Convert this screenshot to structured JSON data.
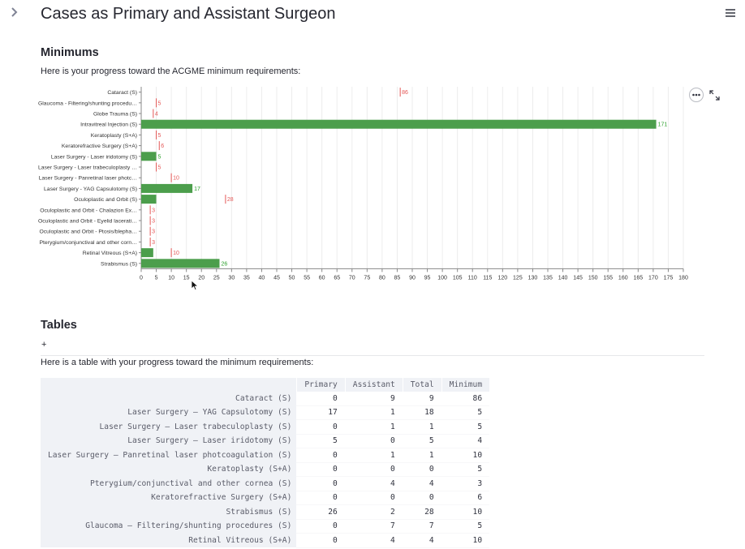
{
  "page": {
    "title": "Cases as Primary and Assistant Surgeon"
  },
  "icons": {
    "sidebar_toggle": "chevron-right-icon",
    "menu": "hamburger-menu-icon",
    "chart_menu": "more-horizontal-icon",
    "chart_fullscreen": "expand-icon"
  },
  "minimums": {
    "heading": "Minimums",
    "intro": "Here is your progress toward the ACGME minimum requirements:"
  },
  "colors": {
    "bar": "#4c9e4c",
    "min_marker": "#e45756",
    "bar_label": "#2ca02c"
  },
  "chart_data": {
    "type": "bar",
    "orientation": "horizontal",
    "categories": [
      "Cataract (S)",
      "Glaucoma - Filtering/shunting procedu…",
      "Globe Trauma (S)",
      "Intravitreal Injection (S)",
      "Keratoplasty (S+A)",
      "Keratorefractive Surgery (S+A)",
      "Laser Surgery - Laser iridotomy (S)",
      "Laser Surgery - Laser trabeculoplasty …",
      "Laser Surgery - Panretinal laser photc…",
      "Laser Surgery - YAG Capsulotomy (S)",
      "Oculoplastic and Orbit (S)",
      "Oculoplastic and Orbit - Chalazion Ex…",
      "Oculoplastic and Orbit - Eyelid lacerati…",
      "Oculoplastic and Orbit - Ptosis/blepha…",
      "Pterygium/conjunctival and other corn…",
      "Retinal Vitreous (S+A)",
      "Strabismus (S)"
    ],
    "series": [
      {
        "values": [
          0,
          0,
          0,
          171,
          0,
          0,
          5,
          0,
          0,
          17,
          5,
          0,
          0,
          0,
          0,
          4,
          26
        ]
      },
      {
        "values": [
          86,
          5,
          4,
          null,
          5,
          6,
          null,
          5,
          10,
          null,
          28,
          3,
          3,
          3,
          3,
          10,
          null
        ]
      }
    ],
    "bar_labels": [
      "",
      "",
      "",
      "171",
      "",
      "",
      "5",
      "",
      "",
      "17",
      "",
      "",
      "",
      "",
      "",
      "",
      "26"
    ],
    "min_labels": [
      "86",
      "5",
      "4",
      "",
      "5",
      "6",
      "",
      "5",
      "10",
      "",
      "28",
      "3",
      "3",
      "3",
      "3",
      "10",
      ""
    ],
    "xlim": [
      0,
      180
    ],
    "x_ticks": [
      "0",
      "5",
      "10",
      "15",
      "20",
      "25",
      "30",
      "35",
      "40",
      "45",
      "50",
      "55",
      "60",
      "65",
      "70",
      "75",
      "80",
      "85",
      "90",
      "95",
      "100",
      "105",
      "110",
      "115",
      "120",
      "125",
      "130",
      "135",
      "140",
      "145",
      "150",
      "155",
      "160",
      "165",
      "170",
      "175",
      "180"
    ],
    "grid": true
  },
  "tables": {
    "heading": "Tables",
    "expander_label": "+",
    "intro": "Here is a table with your progress toward the minimum requirements:",
    "columns": [
      "Primary",
      "Assistant",
      "Total",
      "Minimum"
    ],
    "rows": [
      {
        "label": "Cataract (S)",
        "cells": [
          "0",
          "9",
          "9",
          "86"
        ]
      },
      {
        "label": "Laser Surgery – YAG Capsulotomy (S)",
        "cells": [
          "17",
          "1",
          "18",
          "5"
        ]
      },
      {
        "label": "Laser Surgery – Laser trabeculoplasty (S)",
        "cells": [
          "0",
          "1",
          "1",
          "5"
        ]
      },
      {
        "label": "Laser Surgery – Laser iridotomy (S)",
        "cells": [
          "5",
          "0",
          "5",
          "4"
        ]
      },
      {
        "label": "Laser Surgery – Panretinal laser photcoagulation (S)",
        "cells": [
          "0",
          "1",
          "1",
          "10"
        ]
      },
      {
        "label": "Keratoplasty (S+A)",
        "cells": [
          "0",
          "0",
          "0",
          "5"
        ]
      },
      {
        "label": "Pterygium/conjunctival and other cornea (S)",
        "cells": [
          "0",
          "4",
          "4",
          "3"
        ]
      },
      {
        "label": "Keratorefractive Surgery (S+A)",
        "cells": [
          "0",
          "0",
          "0",
          "6"
        ]
      },
      {
        "label": "Strabismus (S)",
        "cells": [
          "26",
          "2",
          "28",
          "10"
        ]
      },
      {
        "label": "Glaucoma – Filtering/shunting procedures (S)",
        "cells": [
          "0",
          "7",
          "7",
          "5"
        ]
      },
      {
        "label": "Retinal Vitreous (S+A)",
        "cells": [
          "0",
          "4",
          "4",
          "10"
        ]
      }
    ]
  }
}
